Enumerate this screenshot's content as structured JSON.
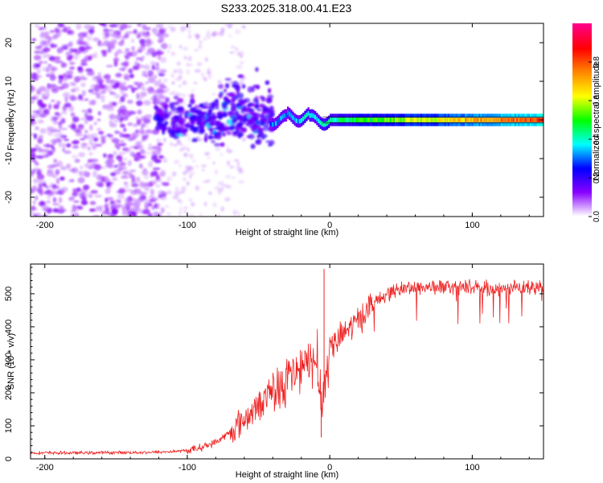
{
  "chart_data": [
    {
      "type": "heatmap",
      "title": "S233.2025.318.00.41.E23",
      "xlabel": "Height of straight line (km)",
      "ylabel": "Frequency (Hz)",
      "xlim": [
        -210,
        150
      ],
      "ylim": [
        -25,
        25
      ],
      "xticks": [
        -200,
        -100,
        0,
        100
      ],
      "xtick_labels": [
        "-200",
        "-100",
        "0",
        "100"
      ],
      "yticks": [
        -20,
        -10,
        0,
        10,
        20
      ],
      "ytick_labels": [
        "-20",
        "-10",
        "0",
        "10",
        "20"
      ],
      "colorbar": {
        "label": "Normalized spectral amplitude",
        "range": [
          0,
          1
        ],
        "ticks": [
          0.0,
          0.2,
          0.4,
          0.6,
          0.8
        ],
        "tick_labels": [
          "0.0",
          "0.2",
          "0.4",
          "0.6",
          "0.8"
        ],
        "colors": [
          "#ffffff",
          "#8800ff",
          "#0000ff",
          "#00ffff",
          "#00ff00",
          "#ffff00",
          "#ff8800",
          "#ff0000",
          "#ff0088"
        ]
      },
      "description_regions": [
        {
          "x_range": [
            -210,
            -120
          ],
          "note": "diffuse noise, amplitude 0.0-0.1"
        },
        {
          "x_range": [
            -120,
            -40
          ],
          "note": "clustered energy near 0 Hz, amplitude 0.1-0.3"
        },
        {
          "x_range": [
            -40,
            150
          ],
          "note": "coherent carrier at ~0 Hz, amplitude 0.4-1.0"
        }
      ]
    },
    {
      "type": "line",
      "xlabel": "Height of straight line (km)",
      "ylabel": "SNR (10 * v/v)",
      "xlim": [
        -210,
        150
      ],
      "ylim": [
        0,
        590
      ],
      "xticks": [
        -200,
        -100,
        0,
        100
      ],
      "xtick_labels": [
        "-200",
        "-100",
        "0",
        "100"
      ],
      "yticks": [
        0,
        100,
        200,
        300,
        400,
        500
      ],
      "ytick_labels": [
        "0",
        "100",
        "200",
        "300",
        "400",
        "500"
      ],
      "color": "#ee2222",
      "series": [
        {
          "name": "SNR",
          "x": [
            -210,
            -180,
            -150,
            -120,
            -100,
            -90,
            -80,
            -70,
            -60,
            -50,
            -40,
            -30,
            -20,
            -10,
            -5,
            0,
            10,
            20,
            30,
            40,
            50,
            60,
            80,
            100,
            120,
            150
          ],
          "y": [
            18,
            18,
            19,
            20,
            25,
            35,
            50,
            80,
            120,
            160,
            210,
            240,
            270,
            300,
            180,
            330,
            380,
            420,
            470,
            500,
            515,
            520,
            520,
            520,
            515,
            520
          ]
        }
      ],
      "spikes": [
        {
          "x": -4,
          "y": 575
        },
        {
          "x": -6,
          "y": 65
        }
      ]
    }
  ]
}
